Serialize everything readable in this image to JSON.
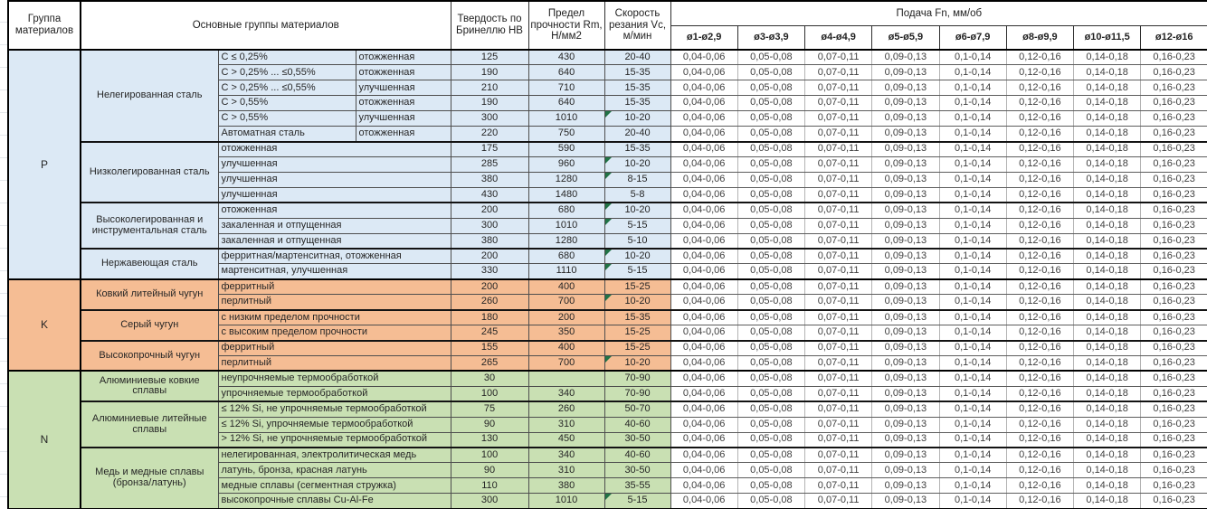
{
  "header": {
    "group": "Группа материалов",
    "main_groups": "Основные группы материалов",
    "hardness": "Твердость по Бринеллю HB",
    "strength": "Предел прочности Rm, Н/мм2",
    "speed": "Скорость резания Vc, м/мин",
    "feed_title": "Подача Fn, мм/об",
    "feed_cols": [
      "ø1-ø2,9",
      "ø3-ø3,9",
      "ø4-ø4,9",
      "ø5-ø5,9",
      "ø6-ø7,9",
      "ø8-ø9,9",
      "ø10-ø11,5",
      "ø12-ø16"
    ]
  },
  "feed_values": [
    "0,04-0,06",
    "0,05-0,08",
    "0,07-0,11",
    "0,09-0,13",
    "0,1-0,14",
    "0,12-0,16",
    "0,14-0,18",
    "0,16-0,23"
  ],
  "colors": {
    "p": "#DCE9F5",
    "k": "#F5BD94",
    "n": "#C9E0B3",
    "flag": "#217346"
  },
  "groups": [
    {
      "code": "P",
      "color_key": "p",
      "subgroups": [
        {
          "name": "Нелегированная сталь",
          "rows": [
            {
              "d1": "C ≤ 0,25%",
              "d2": "отожженная",
              "hb": "125",
              "rm": "430",
              "vc": "20-40",
              "flag": false
            },
            {
              "d1": "C > 0,25% ... ≤0,55%",
              "d2": "отожженная",
              "hb": "190",
              "rm": "640",
              "vc": "15-35",
              "flag": false
            },
            {
              "d1": "C > 0,25% ... ≤0,55%",
              "d2": "улучшенная",
              "hb": "210",
              "rm": "710",
              "vc": "15-35",
              "flag": false
            },
            {
              "d1": "C > 0,55%",
              "d2": "отожженная",
              "hb": "190",
              "rm": "640",
              "vc": "15-35",
              "flag": false
            },
            {
              "d1": "C > 0,55%",
              "d2": "улучшенная",
              "hb": "300",
              "rm": "1010",
              "vc": "10-20",
              "flag": true
            },
            {
              "d1": "Автоматная сталь",
              "d2": "отожженная",
              "hb": "220",
              "rm": "750",
              "vc": "20-40",
              "flag": false
            }
          ]
        },
        {
          "name": "Низколегированная сталь",
          "rows": [
            {
              "d1": "отожженная",
              "hb": "175",
              "rm": "590",
              "vc": "15-35",
              "flag": false
            },
            {
              "d1": "улучшенная",
              "hb": "285",
              "rm": "960",
              "vc": "10-20",
              "flag": true
            },
            {
              "d1": "улучшенная",
              "hb": "380",
              "rm": "1280",
              "vc": "8-15",
              "flag": true
            },
            {
              "d1": "улучшенная",
              "hb": "430",
              "rm": "1480",
              "vc": "5-8",
              "flag": false
            }
          ]
        },
        {
          "name": "Высоколегированная и инструментальная сталь",
          "rows": [
            {
              "d1": "отожженная",
              "hb": "200",
              "rm": "680",
              "vc": "10-20",
              "flag": true
            },
            {
              "d1": "закаленная и отпущенная",
              "hb": "300",
              "rm": "1010",
              "vc": "5-15",
              "flag": true
            },
            {
              "d1": "закаленная и отпущенная",
              "hb": "380",
              "rm": "1280",
              "vc": "5-10",
              "flag": false
            }
          ]
        },
        {
          "name": "Нержавеющая сталь",
          "rows": [
            {
              "d1": "ферритная/мартенситная, отожженная",
              "hb": "200",
              "rm": "680",
              "vc": "10-20",
              "flag": true
            },
            {
              "d1": "мартенситная, улучшенная",
              "hb": "330",
              "rm": "1110",
              "vc": "5-15",
              "flag": true
            }
          ]
        }
      ]
    },
    {
      "code": "K",
      "color_key": "k",
      "subgroups": [
        {
          "name": "Ковкий литейный чугун",
          "rows": [
            {
              "d1": "ферритный",
              "hb": "200",
              "rm": "400",
              "vc": "15-25",
              "flag": false
            },
            {
              "d1": "перлитный",
              "hb": "260",
              "rm": "700",
              "vc": "10-20",
              "flag": true
            }
          ]
        },
        {
          "name": "Серый чугун",
          "rows": [
            {
              "d1": "с низким пределом прочности",
              "hb": "180",
              "rm": "200",
              "vc": "15-35",
              "flag": false
            },
            {
              "d1": "с высоким пределом прочности",
              "hb": "245",
              "rm": "350",
              "vc": "15-25",
              "flag": false
            }
          ]
        },
        {
          "name": "Высокопрочный чугун",
          "rows": [
            {
              "d1": "ферритный",
              "hb": "155",
              "rm": "400",
              "vc": "15-25",
              "flag": false
            },
            {
              "d1": "перлитный",
              "hb": "265",
              "rm": "700",
              "vc": "10-20",
              "flag": true
            }
          ]
        }
      ]
    },
    {
      "code": "N",
      "color_key": "n",
      "subgroups": [
        {
          "name": "Алюминиевые ковкие сплавы",
          "rows": [
            {
              "d1": "неупрочняемые термообработкой",
              "hb": "30",
              "rm": "",
              "vc": "70-90",
              "flag": false
            },
            {
              "d1": "упрочняемые термообработкой",
              "hb": "100",
              "rm": "340",
              "vc": "70-90",
              "flag": false
            }
          ]
        },
        {
          "name": "Алюминиевые литейные сплавы",
          "rows": [
            {
              "d1": "≤ 12% Si, не упрочняемые термообработкой",
              "hb": "75",
              "rm": "260",
              "vc": "50-70",
              "flag": false
            },
            {
              "d1": "≤ 12% Si, упрочняемые термообработкой",
              "hb": "90",
              "rm": "310",
              "vc": "40-60",
              "flag": false
            },
            {
              "d1": "> 12% Si, не упрочняемые термообработкой",
              "hb": "130",
              "rm": "450",
              "vc": "30-50",
              "flag": false
            }
          ]
        },
        {
          "name": "Медь и медные сплавы (бронза/латунь)",
          "rows": [
            {
              "d1": "нелегированная, электролитическая медь",
              "hb": "100",
              "rm": "340",
              "vc": "40-60",
              "flag": false
            },
            {
              "d1": "латунь, бронза, красная латунь",
              "hb": "90",
              "rm": "310",
              "vc": "30-50",
              "flag": false
            },
            {
              "d1": "медные сплавы (сегментная стружка)",
              "hb": "110",
              "rm": "380",
              "vc": "35-55",
              "flag": false
            },
            {
              "d1": "высокопрочные сплавы Cu-Al-Fe",
              "hb": "300",
              "rm": "1010",
              "vc": "5-15",
              "flag": true
            }
          ]
        }
      ]
    }
  ]
}
